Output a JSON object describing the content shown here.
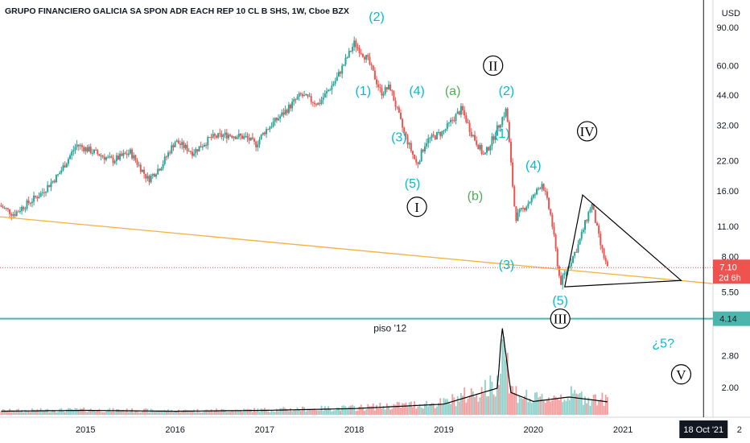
{
  "chart_data": {
    "type": "candlestick",
    "title": "GRUPO FINANCIERO GALICIA SA SPON ADR EACH REP 10 CL B SHS, 1W, Cboe BZX",
    "currency": "USD",
    "y_scale": "log",
    "ylim": [
      1.5,
      120
    ],
    "y_ticks": [
      "90.00",
      "60.00",
      "44.00",
      "32.00",
      "22.00",
      "16.00",
      "11.00",
      "8.00",
      "5.50",
      "2.80",
      "2.00"
    ],
    "x_ticks": [
      "2015",
      "2016",
      "2017",
      "2018",
      "2019",
      "2020",
      "2021"
    ],
    "x_tail_label": "2",
    "last_price": "7.10",
    "countdown": "2d 6h",
    "support_price": "4.14",
    "cursor_date": "18 Oct '21",
    "colors": {
      "up": "#26a69a",
      "down": "#ef5350",
      "fib": "#00bcd4",
      "abc": "#4caf50",
      "trend": "#f5b041",
      "support": "#4db6ac"
    },
    "price_path": [
      [
        2014.0,
        14.0
      ],
      [
        2014.2,
        12.5
      ],
      [
        2014.3,
        13.5
      ],
      [
        2014.5,
        15.5
      ],
      [
        2014.7,
        19.0
      ],
      [
        2014.9,
        26.0
      ],
      [
        2015.1,
        24.0
      ],
      [
        2015.3,
        22.0
      ],
      [
        2015.5,
        24.0
      ],
      [
        2015.7,
        18.0
      ],
      [
        2015.85,
        21.0
      ],
      [
        2016.0,
        27.0
      ],
      [
        2016.2,
        24.0
      ],
      [
        2016.4,
        28.0
      ],
      [
        2016.6,
        29.0
      ],
      [
        2016.8,
        28.0
      ],
      [
        2016.9,
        26.0
      ],
      [
        2017.0,
        30.0
      ],
      [
        2017.2,
        36.0
      ],
      [
        2017.4,
        44.0
      ],
      [
        2017.6,
        40.0
      ],
      [
        2017.8,
        52.0
      ],
      [
        2018.0,
        76.0
      ],
      [
        2018.15,
        64.0
      ],
      [
        2018.3,
        45.0
      ],
      [
        2018.4,
        48.0
      ],
      [
        2018.55,
        30.0
      ],
      [
        2018.7,
        21.0
      ],
      [
        2018.8,
        27.0
      ],
      [
        2019.0,
        30.0
      ],
      [
        2019.1,
        34.0
      ],
      [
        2019.2,
        38.0
      ],
      [
        2019.3,
        30.0
      ],
      [
        2019.45,
        23.0
      ],
      [
        2019.55,
        28.0
      ],
      [
        2019.7,
        38.0
      ],
      [
        2019.75,
        21.0
      ],
      [
        2019.8,
        12.0
      ],
      [
        2020.0,
        15.0
      ],
      [
        2020.1,
        17.5
      ],
      [
        2020.2,
        12.0
      ],
      [
        2020.3,
        6.0
      ],
      [
        2020.5,
        9.0
      ],
      [
        2020.65,
        14.0
      ],
      [
        2020.75,
        9.0
      ],
      [
        2020.85,
        6.5
      ],
      [
        2021.0,
        9.0
      ],
      [
        2021.2,
        8.5
      ],
      [
        2021.35,
        7.5
      ],
      [
        2021.5,
        7.1
      ]
    ],
    "volume_path": [
      [
        2014.0,
        0.04
      ],
      [
        2015.0,
        0.05
      ],
      [
        2016.0,
        0.04
      ],
      [
        2017.0,
        0.05
      ],
      [
        2018.0,
        0.07
      ],
      [
        2018.6,
        0.1
      ],
      [
        2019.0,
        0.12
      ],
      [
        2019.6,
        0.3
      ],
      [
        2019.65,
        1.0
      ],
      [
        2019.75,
        0.25
      ],
      [
        2020.0,
        0.15
      ],
      [
        2020.4,
        0.2
      ],
      [
        2020.8,
        0.15
      ],
      [
        2021.0,
        0.12
      ],
      [
        2021.5,
        0.08
      ]
    ],
    "wave_labels": [
      {
        "text": "(2)",
        "x": 2018.25,
        "y": 96,
        "color": "fib"
      },
      {
        "text": "(1)",
        "x": 2018.1,
        "y": 44,
        "color": "fib"
      },
      {
        "text": "(4)",
        "x": 2018.7,
        "y": 44,
        "color": "fib"
      },
      {
        "text": "(a)",
        "x": 2019.1,
        "y": 44,
        "color": "abc"
      },
      {
        "text": "(2)",
        "x": 2019.7,
        "y": 44,
        "color": "fib"
      },
      {
        "text": "(3)",
        "x": 2018.5,
        "y": 27,
        "color": "fib"
      },
      {
        "text": "(1)",
        "x": 2019.65,
        "y": 28,
        "color": "fib"
      },
      {
        "text": "(5)",
        "x": 2018.65,
        "y": 16.5,
        "color": "fib"
      },
      {
        "text": "(b)",
        "x": 2019.35,
        "y": 14.5,
        "color": "abc"
      },
      {
        "text": "(4)",
        "x": 2020.0,
        "y": 20,
        "color": "fib"
      },
      {
        "text": "(3)",
        "x": 2019.7,
        "y": 7.0,
        "color": "fib"
      },
      {
        "text": "(5)",
        "x": 2020.3,
        "y": 4.8,
        "color": "fib"
      },
      {
        "text": "¿5?",
        "x": 2021.45,
        "y": 3.05,
        "color": "fib"
      }
    ],
    "roman_labels": [
      {
        "text": "II",
        "x": 2019.55,
        "y": 60
      },
      {
        "text": "I",
        "x": 2018.7,
        "y": 13.5
      },
      {
        "text": "IV",
        "x": 2020.6,
        "y": 30
      },
      {
        "text": "III",
        "x": 2020.3,
        "y": 4.14
      },
      {
        "text": "V",
        "x": 2021.65,
        "y": 2.3
      }
    ],
    "notes": [
      {
        "text": "piso '12",
        "x": 2018.4,
        "y": 3.75
      }
    ],
    "trendline": [
      [
        2014.0,
        12.2
      ],
      [
        2022.0,
        6.0
      ]
    ],
    "triangle": [
      [
        2020.55,
        15.3
      ],
      [
        2020.35,
        5.8
      ],
      [
        2021.65,
        6.2
      ]
    ],
    "support_line": 4.14,
    "last_price_line": 7.1,
    "vertical_cursor_x": 2021.9
  }
}
